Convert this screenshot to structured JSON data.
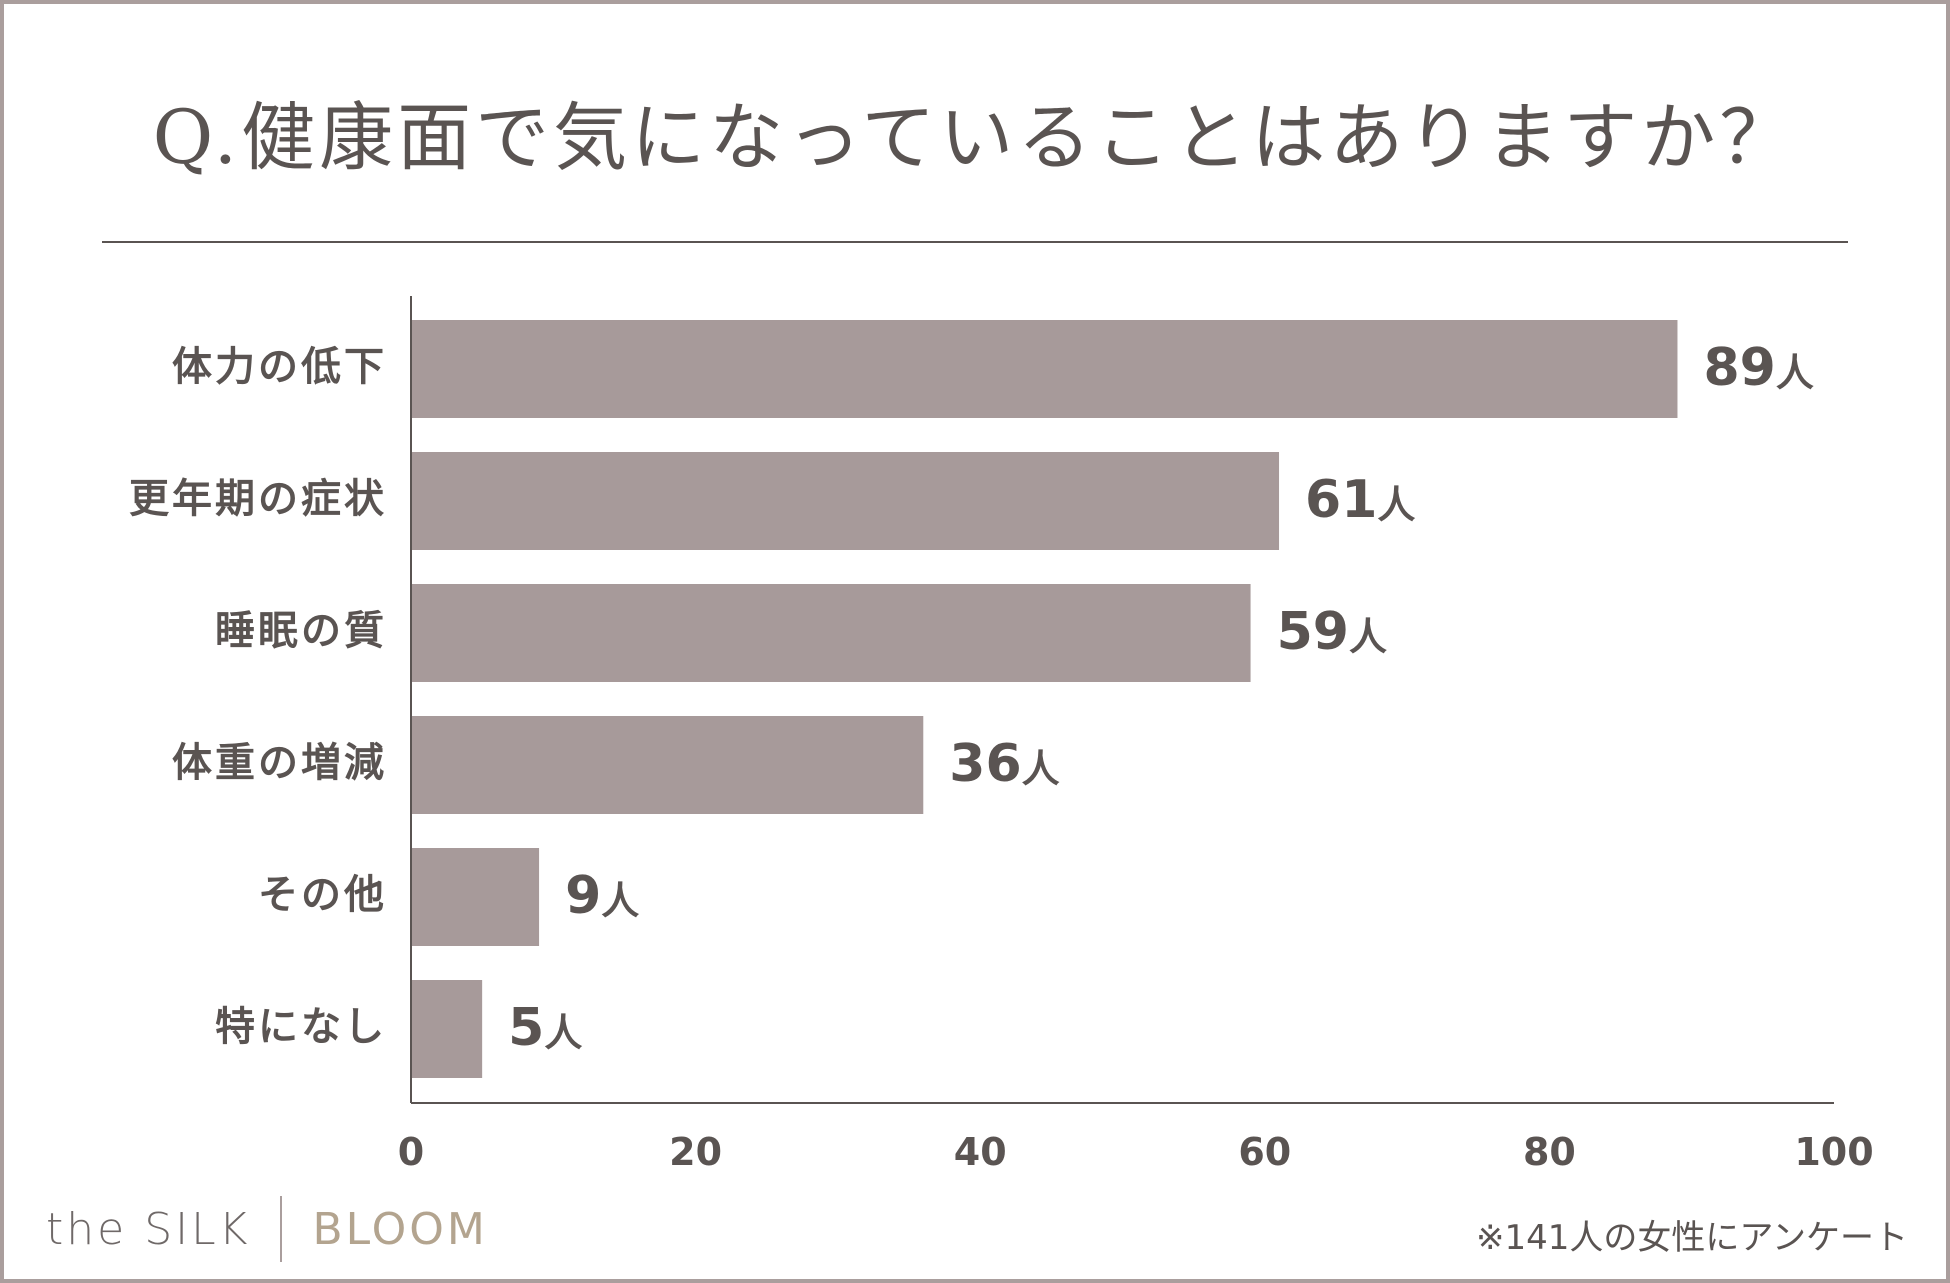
{
  "chart_data": {
    "type": "bar",
    "orientation": "horizontal",
    "title": "Q.健康面で気になっていることはありますか？",
    "categories": [
      "体力の低下",
      "更年期の症状",
      "睡眠の質",
      "体重の増減",
      "その他",
      "特になし"
    ],
    "values": [
      89,
      61,
      59,
      36,
      9,
      5
    ],
    "value_unit": "人",
    "xlim": [
      0,
      100
    ],
    "xticks": [
      "0",
      "20",
      "40",
      "60",
      "80",
      "100"
    ],
    "grid": false,
    "bar_color": "#a79a9a"
  },
  "footer": {
    "brand_left": "the SILK",
    "brand_right": "BLOOM",
    "note": "※141人の女性にアンケート"
  },
  "colors": {
    "text": "#5a5452",
    "frame": "#aa9e9d",
    "bar": "#a79a9a",
    "brand_accent": "#b3a48f"
  }
}
